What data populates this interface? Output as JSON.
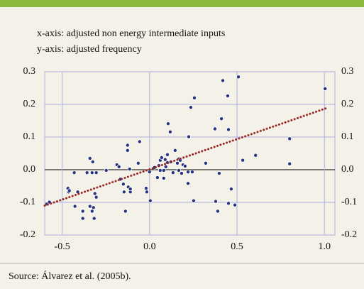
{
  "chart_data": {
    "type": "scatter",
    "subtitle_x": "x-axis: adjusted non energy intermediate inputs",
    "subtitle_y": "y-axis: adjusted frequency",
    "source": "Source: Álvarez et al. (2005b).",
    "color": "#27337f",
    "trend_color": "#9b2a2a",
    "grid": true,
    "xlim": [
      -0.6,
      1.06
    ],
    "ylim": [
      -0.2,
      0.3
    ],
    "xticks": [
      -0.5,
      {
        "value": 0,
        "label": "0.0"
      },
      0.5,
      {
        "value": 1,
        "label": "1.0"
      }
    ],
    "yticks": [
      -0.2,
      -0.1,
      {
        "value": 0,
        "label": "0.0"
      },
      0.1,
      0.2,
      0.3
    ],
    "trend": {
      "x": [
        -0.6,
        1.02
      ],
      "y": [
        -0.11,
        0.19
      ]
    },
    "x": [
      -0.589,
      -0.573,
      -0.467,
      -0.463,
      -0.459,
      -0.431,
      -0.427,
      -0.411,
      -0.382,
      -0.382,
      -0.358,
      -0.341,
      -0.341,
      -0.329,
      -0.329,
      -0.325,
      -0.317,
      -0.321,
      -0.313,
      -0.305,
      -0.305,
      -0.248,
      -0.187,
      -0.175,
      -0.167,
      -0.15,
      -0.146,
      -0.138,
      -0.126,
      -0.126,
      -0.122,
      -0.11,
      -0.11,
      -0.114,
      -0.065,
      -0.057,
      -0.016,
      -0.02,
      0,
      0.004,
      0.028,
      0.045,
      0.053,
      0.061,
      0.061,
      0.069,
      0.081,
      0.081,
      0.089,
      0.093,
      0.102,
      0.102,
      0.118,
      0.106,
      0.122,
      0.134,
      0.146,
      0.159,
      0.167,
      0.167,
      0.175,
      0.183,
      0.191,
      0.203,
      0.22,
      0.22,
      0.224,
      0.244,
      0.256,
      0.236,
      0.252,
      0.321,
      0.374,
      0.378,
      0.39,
      0.398,
      0.411,
      0.447,
      0.451,
      0.451,
      0.467,
      0.488,
      0.419,
      0.508,
      0.533,
      0.606,
      0.801,
      0.801,
      1.004
    ],
    "y": [
      -0.105,
      -0.099,
      -0.057,
      -0.068,
      -0.064,
      -0.009,
      -0.112,
      -0.068,
      -0.127,
      -0.149,
      -0.009,
      0.035,
      -0.112,
      -0.127,
      -0.009,
      0.024,
      -0.149,
      -0.116,
      -0.073,
      -0.084,
      -0.009,
      -0.002,
      0.015,
      0.009,
      -0.029,
      -0.044,
      -0.068,
      -0.127,
      0.075,
      0.059,
      -0.053,
      -0.068,
      -0.059,
      0.002,
      0.02,
      0.086,
      -0.068,
      -0.057,
      -0.007,
      -0.095,
      0.007,
      -0.024,
      0.013,
      0.029,
      -0.002,
      0.037,
      -0.026,
      -0.002,
      0.031,
      0.009,
      0.046,
      0.022,
      0.116,
      0.141,
      0.024,
      -0.009,
      0.059,
      0.02,
      0.033,
      -0.002,
      0.029,
      -0.011,
      0.015,
      0.011,
      -0.007,
      -0.042,
      0.101,
      -0.007,
      0.22,
      0.191,
      -0.095,
      0.02,
      0.125,
      -0.097,
      -0.127,
      -0.011,
      0.156,
      0.226,
      0.123,
      -0.103,
      -0.059,
      -0.108,
      0.273,
      0.284,
      0.029,
      0.044,
      0.095,
      0.018,
      0.248
    ]
  }
}
